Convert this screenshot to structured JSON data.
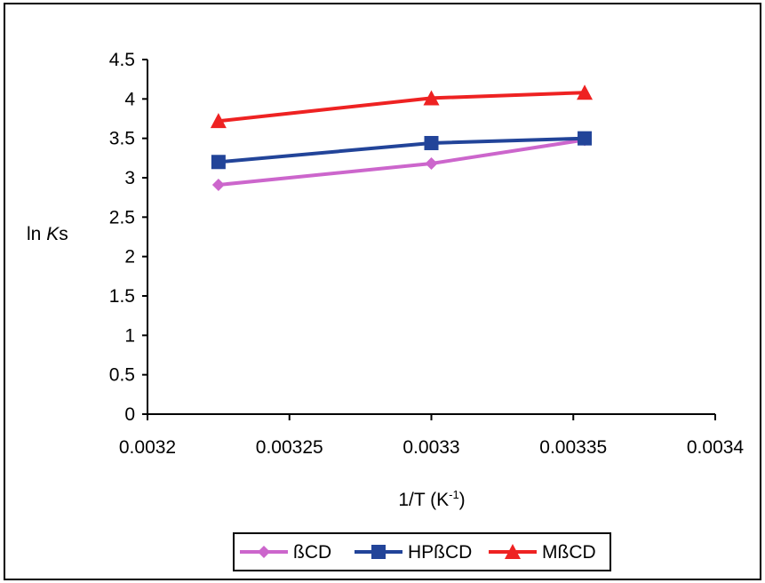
{
  "chart_data": {
    "type": "line",
    "title": "",
    "xlabel": "1/T (K-1)",
    "xlabel_base": "1/T (K",
    "xlabel_sup": "-1",
    "xlabel_tail": ")",
    "ylabel": "ln Ks",
    "ylabel_plain": "ln ",
    "ylabel_italic": "K",
    "ylabel_tail": "s",
    "xlim": [
      0.0032,
      0.0034
    ],
    "ylim": [
      0,
      4.5
    ],
    "x_ticks": [
      "0.0032",
      "0.00325",
      "0.0033",
      "0.00335",
      "0.0034"
    ],
    "y_ticks": [
      "0",
      "0.5",
      "1",
      "1.5",
      "2",
      "2.5",
      "3",
      "3.5",
      "4",
      "4.5"
    ],
    "grid": false,
    "legend_position": "bottom",
    "x": [
      0.003225,
      0.0033,
      0.003354
    ],
    "series": [
      {
        "name": "ßCD",
        "values": [
          2.91,
          3.18,
          3.48
        ],
        "color": "#cc66cc",
        "marker": "diamond"
      },
      {
        "name": "HPßCD",
        "values": [
          3.2,
          3.44,
          3.5
        ],
        "color": "#224499",
        "marker": "square"
      },
      {
        "name": "MßCD",
        "values": [
          3.72,
          4.01,
          4.08
        ],
        "color": "#ee2222",
        "marker": "triangle"
      }
    ]
  }
}
